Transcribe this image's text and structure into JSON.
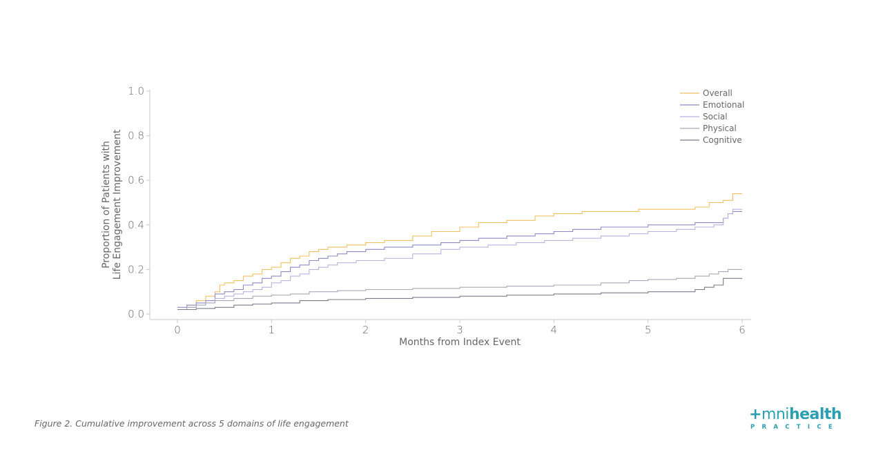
{
  "caption": "Figure 2. Cumulative improvement across 5 domains of life engagement",
  "brand": {
    "plus": "+",
    "name_part1": "mni",
    "name_part2": "health",
    "tagline": "PRACTICE",
    "color": "#2a9fb0"
  },
  "chart_data": {
    "type": "line",
    "step": true,
    "title": "",
    "xlabel": "Months from Index Event",
    "ylabel_lines": [
      "Proportion of Patients with",
      "Life Engagement Improvement"
    ],
    "xlim": [
      -0.3,
      6.1
    ],
    "ylim": [
      -0.02,
      1.0
    ],
    "xticks": [
      0,
      1,
      2,
      3,
      4,
      5,
      6
    ],
    "yticks": [
      0.0,
      0.2,
      0.4,
      0.6,
      0.8,
      1.0
    ],
    "xtick_labels": [
      "0",
      "1",
      "2",
      "3",
      "4",
      "5",
      "6"
    ],
    "ytick_labels": [
      "0.0",
      "0.2",
      "0.4",
      "0.6",
      "0.8",
      "1.0"
    ],
    "grid": false,
    "legend_position": "top-right",
    "series": [
      {
        "name": "Overall",
        "color": "#f0c060",
        "points": [
          [
            0,
            0.02
          ],
          [
            0.1,
            0.04
          ],
          [
            0.2,
            0.06
          ],
          [
            0.3,
            0.08
          ],
          [
            0.4,
            0.1
          ],
          [
            0.45,
            0.13
          ],
          [
            0.5,
            0.14
          ],
          [
            0.6,
            0.15
          ],
          [
            0.7,
            0.17
          ],
          [
            0.8,
            0.18
          ],
          [
            0.9,
            0.2
          ],
          [
            1.0,
            0.21
          ],
          [
            1.1,
            0.23
          ],
          [
            1.2,
            0.25
          ],
          [
            1.3,
            0.26
          ],
          [
            1.4,
            0.28
          ],
          [
            1.5,
            0.29
          ],
          [
            1.6,
            0.3
          ],
          [
            1.8,
            0.31
          ],
          [
            2.0,
            0.32
          ],
          [
            2.2,
            0.33
          ],
          [
            2.5,
            0.35
          ],
          [
            2.7,
            0.37
          ],
          [
            3.0,
            0.39
          ],
          [
            3.2,
            0.41
          ],
          [
            3.5,
            0.42
          ],
          [
            3.8,
            0.44
          ],
          [
            4.0,
            0.45
          ],
          [
            4.3,
            0.46
          ],
          [
            4.6,
            0.46
          ],
          [
            4.9,
            0.47
          ],
          [
            5.2,
            0.47
          ],
          [
            5.5,
            0.48
          ],
          [
            5.65,
            0.5
          ],
          [
            5.8,
            0.51
          ],
          [
            5.9,
            0.54
          ],
          [
            6.0,
            0.54
          ]
        ]
      },
      {
        "name": "Emotional",
        "color": "#8e88c8",
        "points": [
          [
            0,
            0.03
          ],
          [
            0.1,
            0.04
          ],
          [
            0.2,
            0.05
          ],
          [
            0.3,
            0.06
          ],
          [
            0.4,
            0.09
          ],
          [
            0.5,
            0.1
          ],
          [
            0.6,
            0.11
          ],
          [
            0.7,
            0.13
          ],
          [
            0.8,
            0.14
          ],
          [
            0.9,
            0.16
          ],
          [
            1.0,
            0.17
          ],
          [
            1.1,
            0.19
          ],
          [
            1.2,
            0.21
          ],
          [
            1.3,
            0.22
          ],
          [
            1.4,
            0.24
          ],
          [
            1.5,
            0.25
          ],
          [
            1.6,
            0.26
          ],
          [
            1.7,
            0.27
          ],
          [
            1.8,
            0.28
          ],
          [
            2.0,
            0.29
          ],
          [
            2.2,
            0.3
          ],
          [
            2.5,
            0.31
          ],
          [
            2.8,
            0.32
          ],
          [
            3.0,
            0.33
          ],
          [
            3.2,
            0.34
          ],
          [
            3.5,
            0.35
          ],
          [
            3.8,
            0.36
          ],
          [
            4.0,
            0.37
          ],
          [
            4.2,
            0.38
          ],
          [
            4.5,
            0.39
          ],
          [
            4.8,
            0.39
          ],
          [
            5.0,
            0.4
          ],
          [
            5.3,
            0.4
          ],
          [
            5.5,
            0.41
          ],
          [
            5.7,
            0.41
          ],
          [
            5.8,
            0.43
          ],
          [
            5.85,
            0.45
          ],
          [
            5.9,
            0.46
          ],
          [
            6.0,
            0.46
          ]
        ]
      },
      {
        "name": "Social",
        "color": "#b8b2e0",
        "points": [
          [
            0,
            0.02
          ],
          [
            0.1,
            0.03
          ],
          [
            0.2,
            0.04
          ],
          [
            0.3,
            0.05
          ],
          [
            0.4,
            0.07
          ],
          [
            0.5,
            0.08
          ],
          [
            0.6,
            0.09
          ],
          [
            0.7,
            0.1
          ],
          [
            0.8,
            0.11
          ],
          [
            0.9,
            0.12
          ],
          [
            1.0,
            0.14
          ],
          [
            1.1,
            0.15
          ],
          [
            1.2,
            0.17
          ],
          [
            1.3,
            0.18
          ],
          [
            1.4,
            0.2
          ],
          [
            1.5,
            0.21
          ],
          [
            1.6,
            0.22
          ],
          [
            1.7,
            0.23
          ],
          [
            1.9,
            0.24
          ],
          [
            2.2,
            0.25
          ],
          [
            2.5,
            0.27
          ],
          [
            2.8,
            0.29
          ],
          [
            3.0,
            0.3
          ],
          [
            3.3,
            0.31
          ],
          [
            3.6,
            0.32
          ],
          [
            3.9,
            0.33
          ],
          [
            4.2,
            0.34
          ],
          [
            4.5,
            0.35
          ],
          [
            4.8,
            0.36
          ],
          [
            5.0,
            0.37
          ],
          [
            5.3,
            0.38
          ],
          [
            5.5,
            0.39
          ],
          [
            5.7,
            0.4
          ],
          [
            5.8,
            0.43
          ],
          [
            5.85,
            0.45
          ],
          [
            5.9,
            0.47
          ],
          [
            6.0,
            0.47
          ]
        ]
      },
      {
        "name": "Physical",
        "color": "#a8a8b8",
        "points": [
          [
            0,
            0.02
          ],
          [
            0.1,
            0.03
          ],
          [
            0.2,
            0.04
          ],
          [
            0.3,
            0.05
          ],
          [
            0.4,
            0.06
          ],
          [
            0.6,
            0.07
          ],
          [
            0.8,
            0.08
          ],
          [
            1.0,
            0.085
          ],
          [
            1.2,
            0.09
          ],
          [
            1.4,
            0.1
          ],
          [
            1.7,
            0.105
          ],
          [
            2.0,
            0.11
          ],
          [
            2.5,
            0.115
          ],
          [
            3.0,
            0.12
          ],
          [
            3.5,
            0.125
          ],
          [
            4.0,
            0.13
          ],
          [
            4.5,
            0.14
          ],
          [
            4.8,
            0.15
          ],
          [
            5.0,
            0.155
          ],
          [
            5.3,
            0.16
          ],
          [
            5.5,
            0.17
          ],
          [
            5.65,
            0.18
          ],
          [
            5.75,
            0.19
          ],
          [
            5.85,
            0.2
          ],
          [
            6.0,
            0.2
          ]
        ]
      },
      {
        "name": "Cognitive",
        "color": "#7a7a8a",
        "points": [
          [
            0,
            0.02
          ],
          [
            0.2,
            0.025
          ],
          [
            0.4,
            0.03
          ],
          [
            0.6,
            0.04
          ],
          [
            0.8,
            0.045
          ],
          [
            1.0,
            0.05
          ],
          [
            1.3,
            0.06
          ],
          [
            1.6,
            0.065
          ],
          [
            2.0,
            0.07
          ],
          [
            2.5,
            0.075
          ],
          [
            3.0,
            0.08
          ],
          [
            3.5,
            0.085
          ],
          [
            4.0,
            0.09
          ],
          [
            4.5,
            0.095
          ],
          [
            5.0,
            0.1
          ],
          [
            5.4,
            0.1
          ],
          [
            5.5,
            0.11
          ],
          [
            5.6,
            0.12
          ],
          [
            5.7,
            0.13
          ],
          [
            5.8,
            0.16
          ],
          [
            6.0,
            0.16
          ]
        ]
      }
    ]
  }
}
